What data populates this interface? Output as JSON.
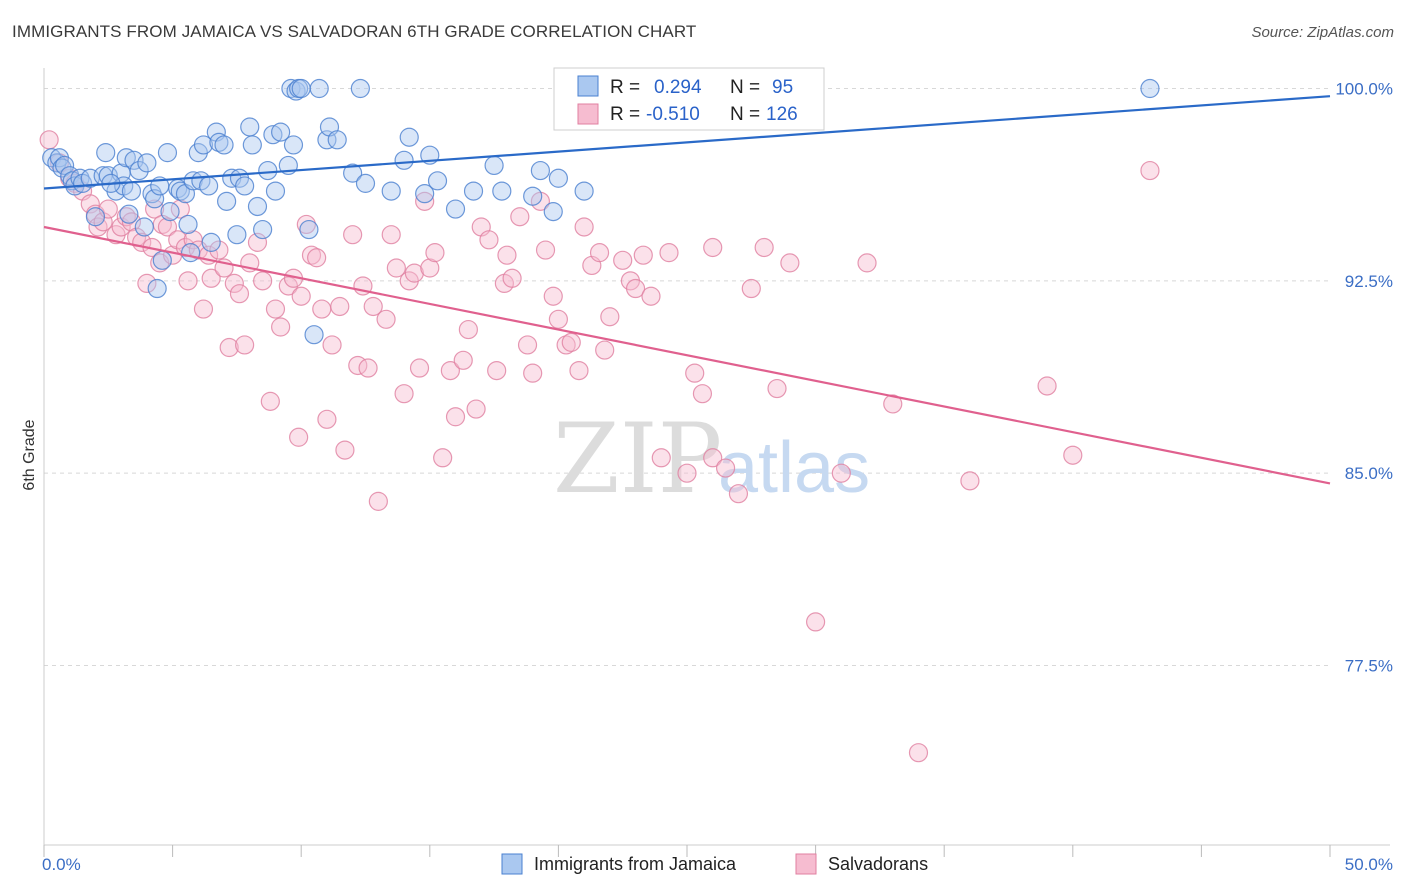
{
  "header": {
    "title": "IMMIGRANTS FROM JAMAICA VS SALVADORAN 6TH GRADE CORRELATION CHART",
    "source": "Source: ZipAtlas.com"
  },
  "watermark": {
    "zip": "ZIP",
    "atlas": "atlas"
  },
  "colors": {
    "blue_fill": "#aac8f0",
    "blue_stroke": "#4a80d0",
    "blue_line": "#2a6ac8",
    "pink_fill": "#f6bcd0",
    "pink_stroke": "#e07fa0",
    "pink_line": "#e0608e",
    "grid": "#d8d8d8",
    "tick_label": "#3b6ec5"
  },
  "legend": {
    "r_label": "R =",
    "n_label": "N =",
    "rows": [
      {
        "r": "0.294",
        "n": "95"
      },
      {
        "r": "-0.510",
        "n": "126"
      }
    ]
  },
  "bottom_legend": [
    "Immigrants from Jamaica",
    "Salvadorans"
  ],
  "chart_data": {
    "type": "scatter",
    "xlabel": "",
    "ylabel": "6th Grade",
    "xlim": [
      0,
      50
    ],
    "ylim": [
      70.5,
      100.8
    ],
    "x_tick_labels": [
      {
        "value": 0,
        "label": "0.0%"
      },
      {
        "value": 50,
        "label": "50.0%"
      }
    ],
    "y_tick_labels": [
      {
        "value": 100,
        "label": "100.0%"
      },
      {
        "value": 92.5,
        "label": "92.5%"
      },
      {
        "value": 85,
        "label": "85.0%"
      },
      {
        "value": 77.5,
        "label": "77.5%"
      }
    ],
    "grid": true,
    "legend_position": "top-center",
    "series": [
      {
        "name": "Immigrants from Jamaica",
        "trend": {
          "x": [
            0,
            50
          ],
          "y": [
            96.1,
            99.7
          ]
        },
        "points": [
          [
            0.3,
            97.3
          ],
          [
            0.5,
            97.1
          ],
          [
            0.6,
            97.3
          ],
          [
            0.7,
            96.9
          ],
          [
            0.8,
            97.0
          ],
          [
            1.0,
            96.6
          ],
          [
            1.1,
            96.4
          ],
          [
            1.2,
            96.2
          ],
          [
            1.4,
            96.5
          ],
          [
            1.5,
            96.3
          ],
          [
            1.8,
            96.5
          ],
          [
            2.0,
            95.0
          ],
          [
            2.3,
            96.6
          ],
          [
            2.4,
            97.5
          ],
          [
            2.5,
            96.6
          ],
          [
            2.8,
            96.0
          ],
          [
            3.0,
            96.7
          ],
          [
            3.1,
            96.2
          ],
          [
            3.2,
            97.3
          ],
          [
            3.3,
            95.1
          ],
          [
            3.4,
            96.0
          ],
          [
            3.5,
            97.2
          ],
          [
            3.7,
            96.8
          ],
          [
            3.9,
            94.6
          ],
          [
            4.0,
            97.1
          ],
          [
            4.2,
            95.9
          ],
          [
            4.3,
            95.7
          ],
          [
            4.4,
            92.2
          ],
          [
            4.5,
            96.2
          ],
          [
            4.6,
            93.3
          ],
          [
            4.8,
            97.5
          ],
          [
            4.9,
            95.2
          ],
          [
            5.2,
            96.1
          ],
          [
            5.3,
            96.0
          ],
          [
            5.5,
            95.9
          ],
          [
            5.6,
            94.7
          ],
          [
            5.7,
            93.6
          ],
          [
            5.8,
            96.4
          ],
          [
            6.0,
            97.5
          ],
          [
            6.1,
            96.4
          ],
          [
            6.2,
            97.8
          ],
          [
            6.4,
            96.2
          ],
          [
            6.5,
            94.0
          ],
          [
            6.7,
            98.3
          ],
          [
            6.8,
            97.9
          ],
          [
            7.0,
            97.8
          ],
          [
            7.1,
            95.6
          ],
          [
            7.3,
            96.5
          ],
          [
            7.5,
            94.3
          ],
          [
            7.6,
            96.5
          ],
          [
            7.8,
            96.2
          ],
          [
            8.0,
            98.5
          ],
          [
            8.1,
            97.8
          ],
          [
            8.3,
            95.4
          ],
          [
            8.5,
            94.5
          ],
          [
            8.7,
            96.8
          ],
          [
            8.9,
            98.2
          ],
          [
            9.0,
            96.0
          ],
          [
            9.2,
            98.3
          ],
          [
            9.5,
            97.0
          ],
          [
            9.6,
            100.0
          ],
          [
            9.7,
            97.8
          ],
          [
            9.8,
            99.9
          ],
          [
            9.9,
            100.0
          ],
          [
            10.0,
            100.0
          ],
          [
            10.3,
            94.5
          ],
          [
            10.5,
            90.4
          ],
          [
            10.7,
            100.0
          ],
          [
            11.0,
            98.0
          ],
          [
            11.1,
            98.5
          ],
          [
            11.4,
            98.0
          ],
          [
            12.0,
            96.7
          ],
          [
            12.3,
            100.0
          ],
          [
            12.5,
            96.3
          ],
          [
            13.5,
            96.0
          ],
          [
            14.0,
            97.2
          ],
          [
            14.2,
            98.1
          ],
          [
            14.8,
            95.9
          ],
          [
            15.0,
            97.4
          ],
          [
            15.3,
            96.4
          ],
          [
            16.0,
            95.3
          ],
          [
            16.7,
            96.0
          ],
          [
            17.5,
            97.0
          ],
          [
            17.8,
            96.0
          ],
          [
            19.0,
            95.8
          ],
          [
            19.3,
            96.8
          ],
          [
            19.8,
            95.2
          ],
          [
            20.0,
            96.5
          ],
          [
            21.0,
            96.0
          ],
          [
            22.0,
            100.0
          ],
          [
            24.0,
            99.9
          ],
          [
            26.0,
            100.0
          ],
          [
            26.5,
            100.0
          ],
          [
            43.0,
            100.0
          ],
          [
            2.6,
            96.3
          ]
        ]
      },
      {
        "name": "Salvadorans",
        "trend": {
          "x": [
            0,
            50
          ],
          "y": [
            94.6,
            84.6
          ]
        },
        "points": [
          [
            0.2,
            98.0
          ],
          [
            0.6,
            97.1
          ],
          [
            1.0,
            96.5
          ],
          [
            1.2,
            96.3
          ],
          [
            1.5,
            96.0
          ],
          [
            1.8,
            95.5
          ],
          [
            2.0,
            95.1
          ],
          [
            2.1,
            94.6
          ],
          [
            2.3,
            94.8
          ],
          [
            2.5,
            95.3
          ],
          [
            2.8,
            94.3
          ],
          [
            3.0,
            94.6
          ],
          [
            3.2,
            95.0
          ],
          [
            3.4,
            94.8
          ],
          [
            3.6,
            94.2
          ],
          [
            3.8,
            94.0
          ],
          [
            4.0,
            92.4
          ],
          [
            4.2,
            93.8
          ],
          [
            4.3,
            95.3
          ],
          [
            4.5,
            93.2
          ],
          [
            4.6,
            94.7
          ],
          [
            4.8,
            94.6
          ],
          [
            5.0,
            93.5
          ],
          [
            5.2,
            94.1
          ],
          [
            5.3,
            95.3
          ],
          [
            5.5,
            93.8
          ],
          [
            5.6,
            92.5
          ],
          [
            5.8,
            94.1
          ],
          [
            6.0,
            93.7
          ],
          [
            6.2,
            91.4
          ],
          [
            6.4,
            93.5
          ],
          [
            6.5,
            92.6
          ],
          [
            6.8,
            93.7
          ],
          [
            7.0,
            93.0
          ],
          [
            7.2,
            89.9
          ],
          [
            7.4,
            92.4
          ],
          [
            7.6,
            92.0
          ],
          [
            7.8,
            90.0
          ],
          [
            8.0,
            93.2
          ],
          [
            8.3,
            94.0
          ],
          [
            8.5,
            92.5
          ],
          [
            8.8,
            87.8
          ],
          [
            9.0,
            91.4
          ],
          [
            9.2,
            90.7
          ],
          [
            9.5,
            92.3
          ],
          [
            9.7,
            92.6
          ],
          [
            9.9,
            86.4
          ],
          [
            10.2,
            94.7
          ],
          [
            10.4,
            93.5
          ],
          [
            10.6,
            93.4
          ],
          [
            10.8,
            91.4
          ],
          [
            11.0,
            87.1
          ],
          [
            11.2,
            90.0
          ],
          [
            11.5,
            91.5
          ],
          [
            11.7,
            85.9
          ],
          [
            12.0,
            94.3
          ],
          [
            12.2,
            89.2
          ],
          [
            12.4,
            92.3
          ],
          [
            12.6,
            89.1
          ],
          [
            12.8,
            91.5
          ],
          [
            13.0,
            83.9
          ],
          [
            13.3,
            91.0
          ],
          [
            13.5,
            94.3
          ],
          [
            13.7,
            93.0
          ],
          [
            14.0,
            88.1
          ],
          [
            14.2,
            92.5
          ],
          [
            14.4,
            92.8
          ],
          [
            14.6,
            89.1
          ],
          [
            14.8,
            95.6
          ],
          [
            15.0,
            93.0
          ],
          [
            15.2,
            93.6
          ],
          [
            15.5,
            85.6
          ],
          [
            15.8,
            89.0
          ],
          [
            16.0,
            87.2
          ],
          [
            16.3,
            89.4
          ],
          [
            16.5,
            90.6
          ],
          [
            16.8,
            87.5
          ],
          [
            17.0,
            94.6
          ],
          [
            17.3,
            94.1
          ],
          [
            17.6,
            89.0
          ],
          [
            17.9,
            92.4
          ],
          [
            18.2,
            92.6
          ],
          [
            18.5,
            95.0
          ],
          [
            18.8,
            90.0
          ],
          [
            19.0,
            88.9
          ],
          [
            19.3,
            95.6
          ],
          [
            19.5,
            93.7
          ],
          [
            19.8,
            91.9
          ],
          [
            20.0,
            91.0
          ],
          [
            20.3,
            90.0
          ],
          [
            20.5,
            90.1
          ],
          [
            20.8,
            89.0
          ],
          [
            21.0,
            94.6
          ],
          [
            21.3,
            93.1
          ],
          [
            21.6,
            93.6
          ],
          [
            21.8,
            89.8
          ],
          [
            22.0,
            91.1
          ],
          [
            22.5,
            93.3
          ],
          [
            22.8,
            92.5
          ],
          [
            23.0,
            92.2
          ],
          [
            23.3,
            93.5
          ],
          [
            23.6,
            91.9
          ],
          [
            24.0,
            85.6
          ],
          [
            24.3,
            93.6
          ],
          [
            25.0,
            85.0
          ],
          [
            25.3,
            88.9
          ],
          [
            25.6,
            88.1
          ],
          [
            26.0,
            85.6
          ],
          [
            26.5,
            85.2
          ],
          [
            27.0,
            84.2
          ],
          [
            27.5,
            92.2
          ],
          [
            28.0,
            93.8
          ],
          [
            28.5,
            88.3
          ],
          [
            29.0,
            93.2
          ],
          [
            30.0,
            79.2
          ],
          [
            31.0,
            85.0
          ],
          [
            32.0,
            93.2
          ],
          [
            33.0,
            87.7
          ],
          [
            34.0,
            74.1
          ],
          [
            36.0,
            84.7
          ],
          [
            39.0,
            88.4
          ],
          [
            40.0,
            85.7
          ],
          [
            43.0,
            96.8
          ],
          [
            26.0,
            93.8
          ],
          [
            18.0,
            93.5
          ],
          [
            10.0,
            91.9
          ]
        ]
      }
    ]
  }
}
